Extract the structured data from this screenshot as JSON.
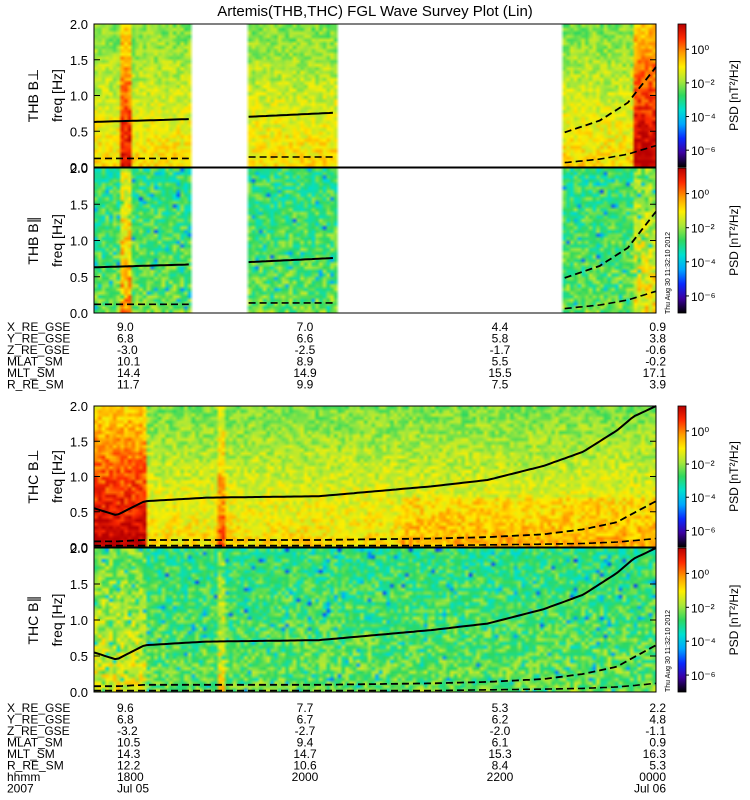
{
  "title": "Artemis(THB,THC) FGL Wave Survey Plot (Lin)",
  "timestamp": "Thu Aug 30 11:32:10 2012",
  "colorbar": {
    "label": "PSD [nT²/Hz]",
    "ticks": [
      "10⁰",
      "10⁻²",
      "10⁻⁴",
      "10⁻⁶"
    ],
    "colors": [
      "#000000",
      "#3c00a0",
      "#0a2aff",
      "#00a8ff",
      "#00e0d0",
      "#2ed860",
      "#a8e83a",
      "#ffee00",
      "#ff9a00",
      "#ff2a00",
      "#b80000"
    ]
  },
  "groups": [
    {
      "probe": "THB",
      "gaps": [
        [
          0.172,
          0.272
        ],
        [
          0.432,
          0.835
        ]
      ],
      "panels": [
        {
          "label": "THB B⊥",
          "intensity": "high"
        },
        {
          "label": "THB B∥",
          "intensity": "mid"
        }
      ],
      "eph_labels": [
        "X_RE_GSE",
        "Y_RE_GSE",
        "Z_RE_GSE",
        "MLAT_SM",
        "MLT_SM",
        "R_RE_SM"
      ],
      "eph_values": [
        [
          "9.0",
          "7.0",
          "4.4",
          "0.9"
        ],
        [
          "6.8",
          "6.6",
          "5.8",
          "3.8"
        ],
        [
          "-3.0",
          "-2.5",
          "-1.7",
          "-0.6"
        ],
        [
          "10.1",
          "8.9",
          "5.5",
          "-0.2"
        ],
        [
          "14.4",
          "14.9",
          "15.5",
          "17.1"
        ],
        [
          "11.7",
          "9.9",
          "7.5",
          "3.9"
        ]
      ]
    },
    {
      "probe": "THC",
      "gaps": [],
      "panels": [
        {
          "label": "THC B⊥",
          "intensity": "high"
        },
        {
          "label": "THC B∥",
          "intensity": "mid"
        }
      ],
      "eph_labels": [
        "X_RE_GSE",
        "Y_RE_GSE",
        "Z_RE_GSE",
        "MLAT_SM",
        "MLT_SM",
        "R_RE_SM",
        "hhmm",
        "2007"
      ],
      "eph_values": [
        [
          "9.6",
          "7.7",
          "5.3",
          "2.2"
        ],
        [
          "6.8",
          "6.7",
          "6.2",
          "4.8"
        ],
        [
          "-3.2",
          "-2.7",
          "-2.0",
          "-1.1"
        ],
        [
          "10.5",
          "9.4",
          "6.1",
          "0.9"
        ],
        [
          "14.3",
          "14.7",
          "15.3",
          "16.3"
        ],
        [
          "12.2",
          "10.6",
          "8.4",
          "5.3"
        ],
        [
          "1800",
          "2000",
          "2200",
          "0000"
        ],
        [
          "Jul 05",
          "",
          "",
          "Jul 06"
        ]
      ]
    }
  ],
  "chart_data": {
    "type": "heatmap",
    "title": "Artemis(THB,THC) FGL Wave Survey Plot (Lin)",
    "ylabel": "freq [Hz]",
    "ylim": [
      0,
      2.0
    ],
    "yticks": [
      "0.0",
      "0.5",
      "1.0",
      "1.5",
      "2.0"
    ],
    "colorbar_label": "PSD [nT²/Hz]",
    "colorbar_range_log10": [
      -7,
      1.5
    ],
    "x_time_range_hhmm": [
      "1800",
      "0000"
    ],
    "panels": [
      "THB B⊥",
      "THB B∥",
      "THC B⊥",
      "THC B∥"
    ],
    "thb_fce_curves": {
      "x": [
        0.0,
        0.17,
        0.27,
        0.43,
        0.836,
        0.9,
        0.95,
        1.0
      ],
      "solid": [
        0.63,
        0.67,
        0.7,
        0.76,
        null,
        null,
        null,
        null
      ],
      "dash_upper": [
        null,
        null,
        null,
        null,
        0.48,
        0.65,
        0.9,
        1.4
      ],
      "dash_lower": [
        0.12,
        0.12,
        0.14,
        0.14,
        0.06,
        0.11,
        0.18,
        0.3
      ]
    },
    "thc_fce_curves": {
      "x": [
        0.0,
        0.04,
        0.09,
        0.2,
        0.4,
        0.6,
        0.7,
        0.8,
        0.87,
        0.93,
        0.96,
        1.0
      ],
      "solid": [
        0.55,
        0.45,
        0.65,
        0.7,
        0.72,
        0.86,
        0.95,
        1.15,
        1.35,
        1.65,
        1.85,
        2.0
      ],
      "dash_upper": [
        0.08,
        0.08,
        0.1,
        0.1,
        0.1,
        0.12,
        0.14,
        0.18,
        0.25,
        0.35,
        0.48,
        0.65
      ],
      "dash_lower": [
        0.02,
        0.02,
        0.02,
        0.02,
        0.02,
        0.02,
        0.03,
        0.04,
        0.05,
        0.07,
        0.09,
        0.12
      ]
    }
  }
}
